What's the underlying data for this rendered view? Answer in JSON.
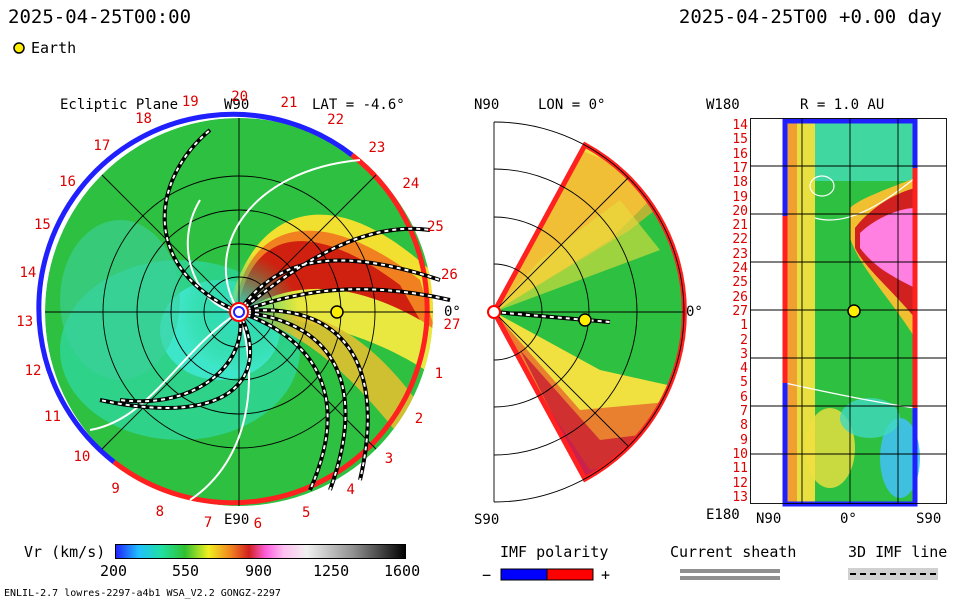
{
  "header": {
    "left_datetime": "2025-04-25T00:00",
    "right_datetime": "2025-04-25T00 +0.00 day"
  },
  "legend_earth": "Earth",
  "panel_ecliptic": {
    "title": "Ecliptic Plane",
    "top_label": "W90",
    "lat_label": "LAT = -4.6°",
    "bottom_label": "E90",
    "right_label": "0°",
    "carrington_labels": [
      "19",
      "20",
      "21",
      "22",
      "23",
      "24",
      "25",
      "26",
      "27",
      "1",
      "2",
      "3",
      "4",
      "5",
      "6",
      "7",
      "8",
      "9",
      "10",
      "11",
      "12",
      "13",
      "14",
      "15",
      "16",
      "17",
      "18"
    ]
  },
  "panel_meridional": {
    "top_label": "N90",
    "lon_label": "LON = 0°",
    "bottom_label": "S90",
    "right_label": "0°"
  },
  "panel_map": {
    "top_left": "W180",
    "r_label": "R = 1.0 AU",
    "bottom_left": "E180",
    "x_labels": [
      "N90",
      "0°",
      "S90"
    ],
    "y_labels": [
      "14",
      "15",
      "16",
      "17",
      "18",
      "19",
      "20",
      "21",
      "22",
      "23",
      "24",
      "25",
      "26",
      "27",
      "1",
      "2",
      "3",
      "4",
      "5",
      "6",
      "7",
      "8",
      "9",
      "10",
      "11",
      "12",
      "13"
    ]
  },
  "colorbar": {
    "label": "Vr (km/s)",
    "ticks": [
      "200",
      "550",
      "900",
      "1250",
      "1600"
    ]
  },
  "imf_polarity": {
    "title": "IMF polarity",
    "minus": "−",
    "plus": "+"
  },
  "current_sheath": {
    "title": "Current sheath"
  },
  "imf_line": {
    "title": "3D IMF line"
  },
  "footer": {
    "model_info": "ENLIL-2.7 lowres-2297-a4b1 WSA_V2.2 GONGZ-2297"
  },
  "colors": {
    "polarity_negative": "#0000ff",
    "polarity_positive": "#ff0000",
    "earth": "#ffee00",
    "slow_wind": "#22bb44",
    "fast_wind": "#cc1100"
  }
}
